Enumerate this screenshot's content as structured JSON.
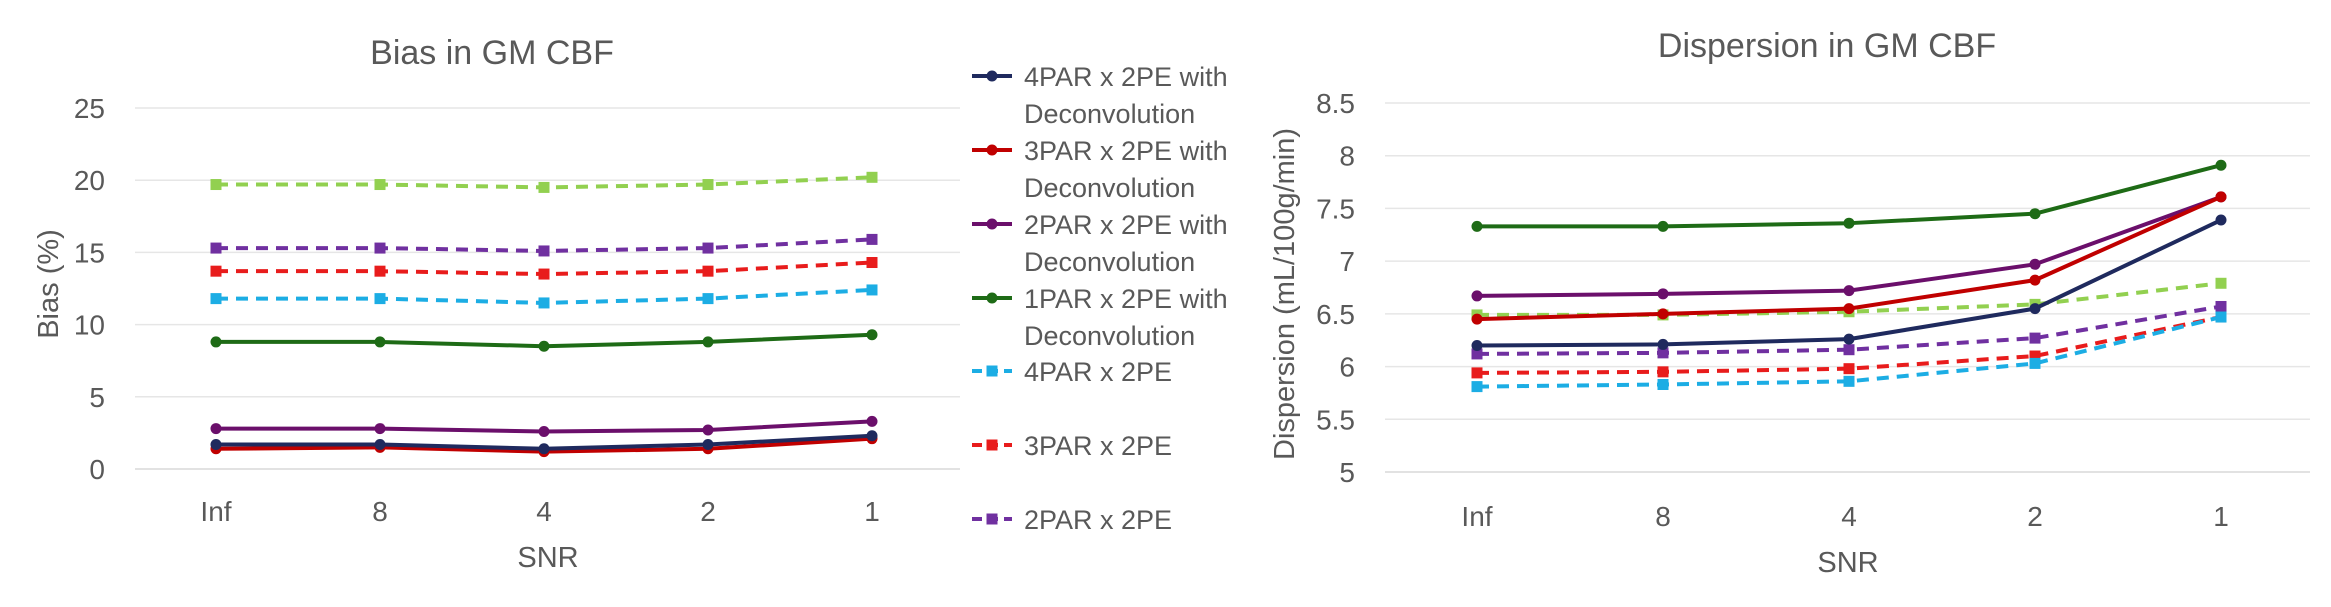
{
  "chart_data": [
    {
      "type": "line",
      "title": "Bias in GM CBF",
      "xlabel": "SNR",
      "ylabel": "Bias (%)",
      "categories": [
        "Inf",
        "8",
        "4",
        "2",
        "1"
      ],
      "ylim": [
        0,
        25
      ],
      "yticks": [
        0,
        5,
        10,
        15,
        20,
        25
      ],
      "grid": true,
      "series": [
        {
          "name": "4PAR x 2PE with Deconvolution",
          "color": "#1F2A5E",
          "dashed": false,
          "marker": "circle",
          "values": [
            1.7,
            1.7,
            1.4,
            1.7,
            2.3
          ]
        },
        {
          "name": "3PAR x 2PE with Deconvolution",
          "color": "#C00000",
          "dashed": false,
          "marker": "circle",
          "values": [
            1.4,
            1.5,
            1.2,
            1.4,
            2.1
          ]
        },
        {
          "name": "2PAR x 2PE with Deconvolution",
          "color": "#6B0F6B",
          "dashed": false,
          "marker": "circle",
          "values": [
            2.8,
            2.8,
            2.6,
            2.7,
            3.3
          ]
        },
        {
          "name": "1PAR x 2PE with Deconvolution",
          "color": "#1E6B16",
          "dashed": false,
          "marker": "circle",
          "values": [
            8.8,
            8.8,
            8.5,
            8.8,
            9.3
          ]
        },
        {
          "name": "4PAR x 2PE",
          "color": "#1CADE4",
          "dashed": true,
          "marker": "square",
          "values": [
            11.8,
            11.8,
            11.5,
            11.8,
            12.4
          ]
        },
        {
          "name": "3PAR x 2PE",
          "color": "#E81C1C",
          "dashed": true,
          "marker": "square",
          "values": [
            13.7,
            13.7,
            13.5,
            13.7,
            14.3
          ]
        },
        {
          "name": "2PAR x 2PE",
          "color": "#7030A0",
          "dashed": true,
          "marker": "square",
          "values": [
            15.3,
            15.3,
            15.1,
            15.3,
            15.9
          ]
        },
        {
          "name": "",
          "color": "#92D050",
          "dashed": true,
          "marker": "square",
          "values": [
            19.7,
            19.7,
            19.5,
            19.7,
            20.2
          ]
        }
      ]
    },
    {
      "type": "line",
      "title": "Dispersion in GM CBF",
      "xlabel": "SNR",
      "ylabel": "Dispersion (mL/100g/min)",
      "categories": [
        "Inf",
        "8",
        "4",
        "2",
        "1"
      ],
      "ylim": [
        5,
        8.5
      ],
      "yticks": [
        "5",
        "5.5",
        "6",
        "6.5",
        "7",
        "7.5",
        "8",
        "8.5"
      ],
      "grid": true,
      "series": [
        {
          "name": "4PAR x 2PE with Deconvolution",
          "color": "#1F2A5E",
          "dashed": false,
          "marker": "circle",
          "values": [
            6.2,
            6.21,
            6.26,
            6.55,
            7.39
          ]
        },
        {
          "name": "3PAR x 2PE with Deconvolution",
          "color": "#C00000",
          "dashed": false,
          "marker": "circle",
          "values": [
            6.45,
            6.5,
            6.55,
            6.82,
            7.61
          ]
        },
        {
          "name": "2PAR x 2PE with Deconvolution",
          "color": "#6B0F6B",
          "dashed": false,
          "marker": "circle",
          "values": [
            6.67,
            6.69,
            6.72,
            6.97,
            7.61
          ]
        },
        {
          "name": "1PAR x 2PE with Deconvolution",
          "color": "#1E6B16",
          "dashed": false,
          "marker": "circle",
          "values": [
            7.33,
            7.33,
            7.36,
            7.45,
            7.91
          ]
        },
        {
          "name": "4PAR x 2PE",
          "color": "#1CADE4",
          "dashed": true,
          "marker": "square",
          "values": [
            5.81,
            5.83,
            5.86,
            6.03,
            6.47
          ]
        },
        {
          "name": "3PAR x 2PE",
          "color": "#E81C1C",
          "dashed": true,
          "marker": "square",
          "values": [
            5.94,
            5.95,
            5.98,
            6.1,
            6.47
          ]
        },
        {
          "name": "2PAR x 2PE",
          "color": "#7030A0",
          "dashed": true,
          "marker": "square",
          "values": [
            6.12,
            6.13,
            6.16,
            6.27,
            6.57
          ]
        },
        {
          "name": "",
          "color": "#92D050",
          "dashed": true,
          "marker": "square",
          "values": [
            6.49,
            6.49,
            6.52,
            6.59,
            6.79
          ]
        }
      ]
    }
  ],
  "legend": {
    "placement": "between charts",
    "entries": [
      {
        "line1": "4PAR x 2PE with",
        "line2": "Deconvolution",
        "color": "#1F2A5E",
        "dashed": false,
        "marker": "circle"
      },
      {
        "line1": "3PAR x 2PE with",
        "line2": "Deconvolution",
        "color": "#C00000",
        "dashed": false,
        "marker": "circle"
      },
      {
        "line1": "2PAR x 2PE with",
        "line2": "Deconvolution",
        "color": "#6B0F6B",
        "dashed": false,
        "marker": "circle"
      },
      {
        "line1": "1PAR x 2PE with",
        "line2": "Deconvolution",
        "color": "#1E6B16",
        "dashed": false,
        "marker": "circle"
      },
      {
        "line1": "4PAR x 2PE",
        "line2": "",
        "color": "#1CADE4",
        "dashed": true,
        "marker": "square"
      },
      {
        "line1": "3PAR x 2PE",
        "line2": "",
        "color": "#E81C1C",
        "dashed": true,
        "marker": "square"
      },
      {
        "line1": "2PAR x 2PE",
        "line2": "",
        "color": "#7030A0",
        "dashed": true,
        "marker": "square"
      }
    ]
  }
}
